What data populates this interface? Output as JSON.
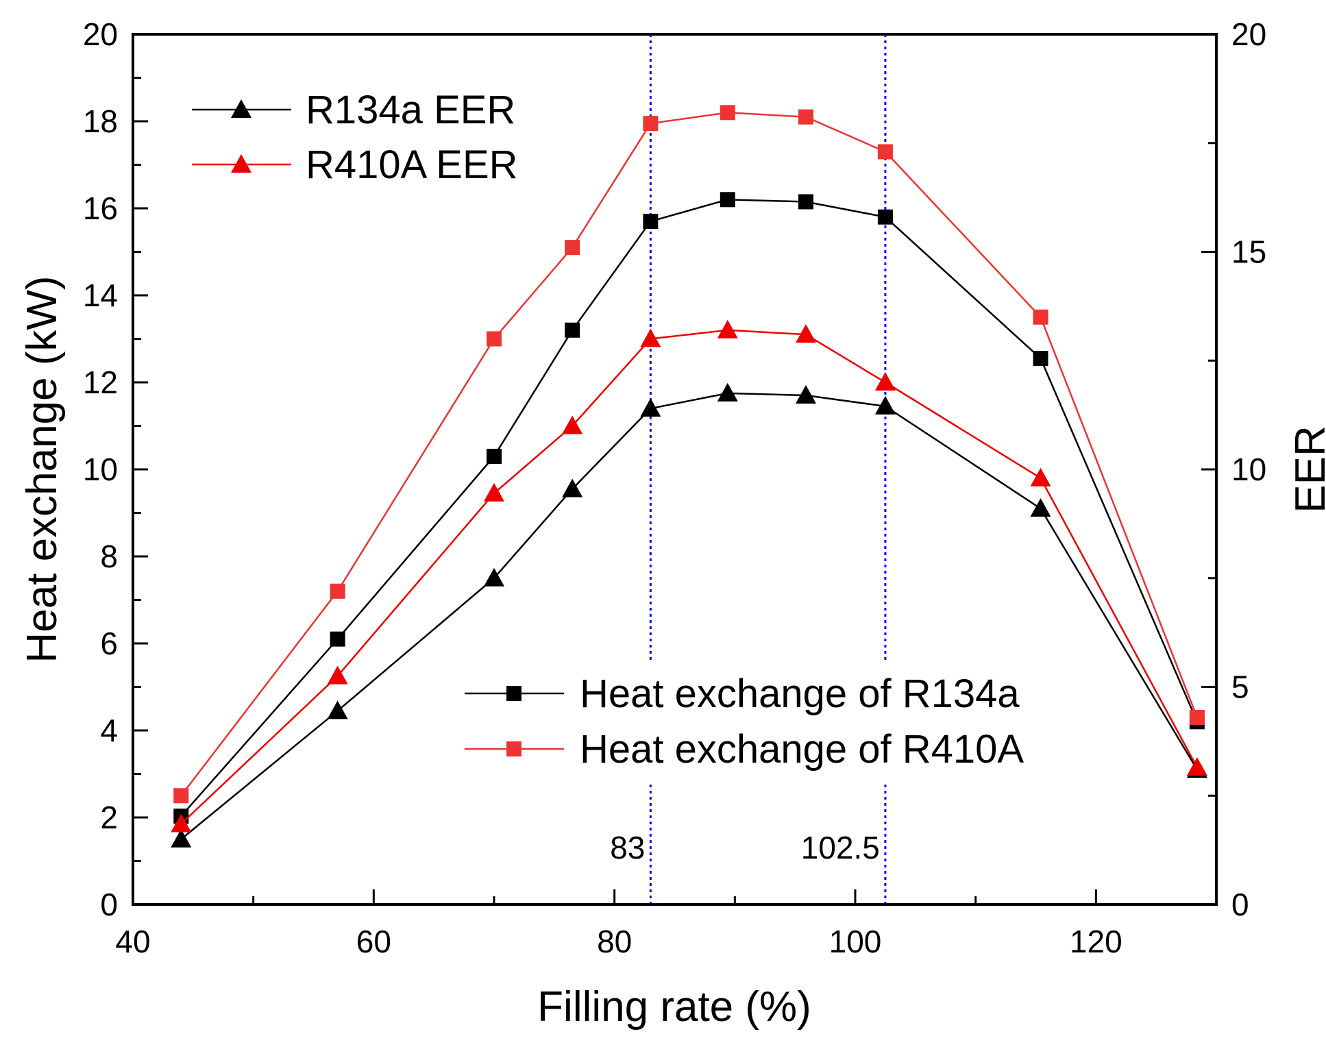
{
  "chart_data": {
    "type": "line",
    "xlabel": "Filling rate (%)",
    "ylabel": "Heat exchange (kW)",
    "y2label": "EER",
    "xlim": [
      40,
      130
    ],
    "ylim": [
      0,
      20
    ],
    "y2lim": [
      0,
      20
    ],
    "xticks": [
      "40",
      "60",
      "80",
      "100",
      "120"
    ],
    "yticks": [
      "0",
      "2",
      "4",
      "6",
      "8",
      "10",
      "12",
      "14",
      "16",
      "18",
      "20"
    ],
    "y2ticks": [
      "0",
      "5",
      "10",
      "15",
      "20"
    ],
    "grid": false,
    "x": [
      44,
      57,
      70,
      76.5,
      83,
      89.4,
      95.9,
      102.5,
      115.4,
      128.4
    ],
    "series": [
      {
        "name": "Heat exchange of R134a",
        "axis": "left",
        "marker": "square",
        "color": "#000000",
        "values": [
          2.03,
          6.1,
          10.3,
          13.2,
          15.7,
          16.2,
          16.15,
          15.8,
          12.55,
          4.2
        ]
      },
      {
        "name": "Heat exchange of R410A",
        "axis": "left",
        "marker": "square",
        "color": "#ee3333",
        "values": [
          2.5,
          7.2,
          13.0,
          15.1,
          17.95,
          18.2,
          18.1,
          17.3,
          13.5,
          4.3
        ]
      },
      {
        "name": "R134a EER",
        "axis": "right",
        "marker": "triangle",
        "color": "#000000",
        "values": [
          1.5,
          4.45,
          7.5,
          9.55,
          11.4,
          11.75,
          11.7,
          11.45,
          9.1,
          3.1
        ]
      },
      {
        "name": "R410A EER",
        "axis": "right",
        "marker": "triangle",
        "color": "#ee0000",
        "values": [
          1.85,
          5.25,
          9.45,
          11.0,
          13.0,
          13.2,
          13.1,
          12.0,
          9.8,
          3.15
        ]
      }
    ],
    "reference_lines": [
      {
        "x": 83,
        "label": "83",
        "color": "#0000ff"
      },
      {
        "x": 102.5,
        "label": "102.5",
        "color": "#0000ff"
      }
    ],
    "legends": [
      "top-left (EER series)",
      "bottom-center (heat exchange series)"
    ]
  }
}
